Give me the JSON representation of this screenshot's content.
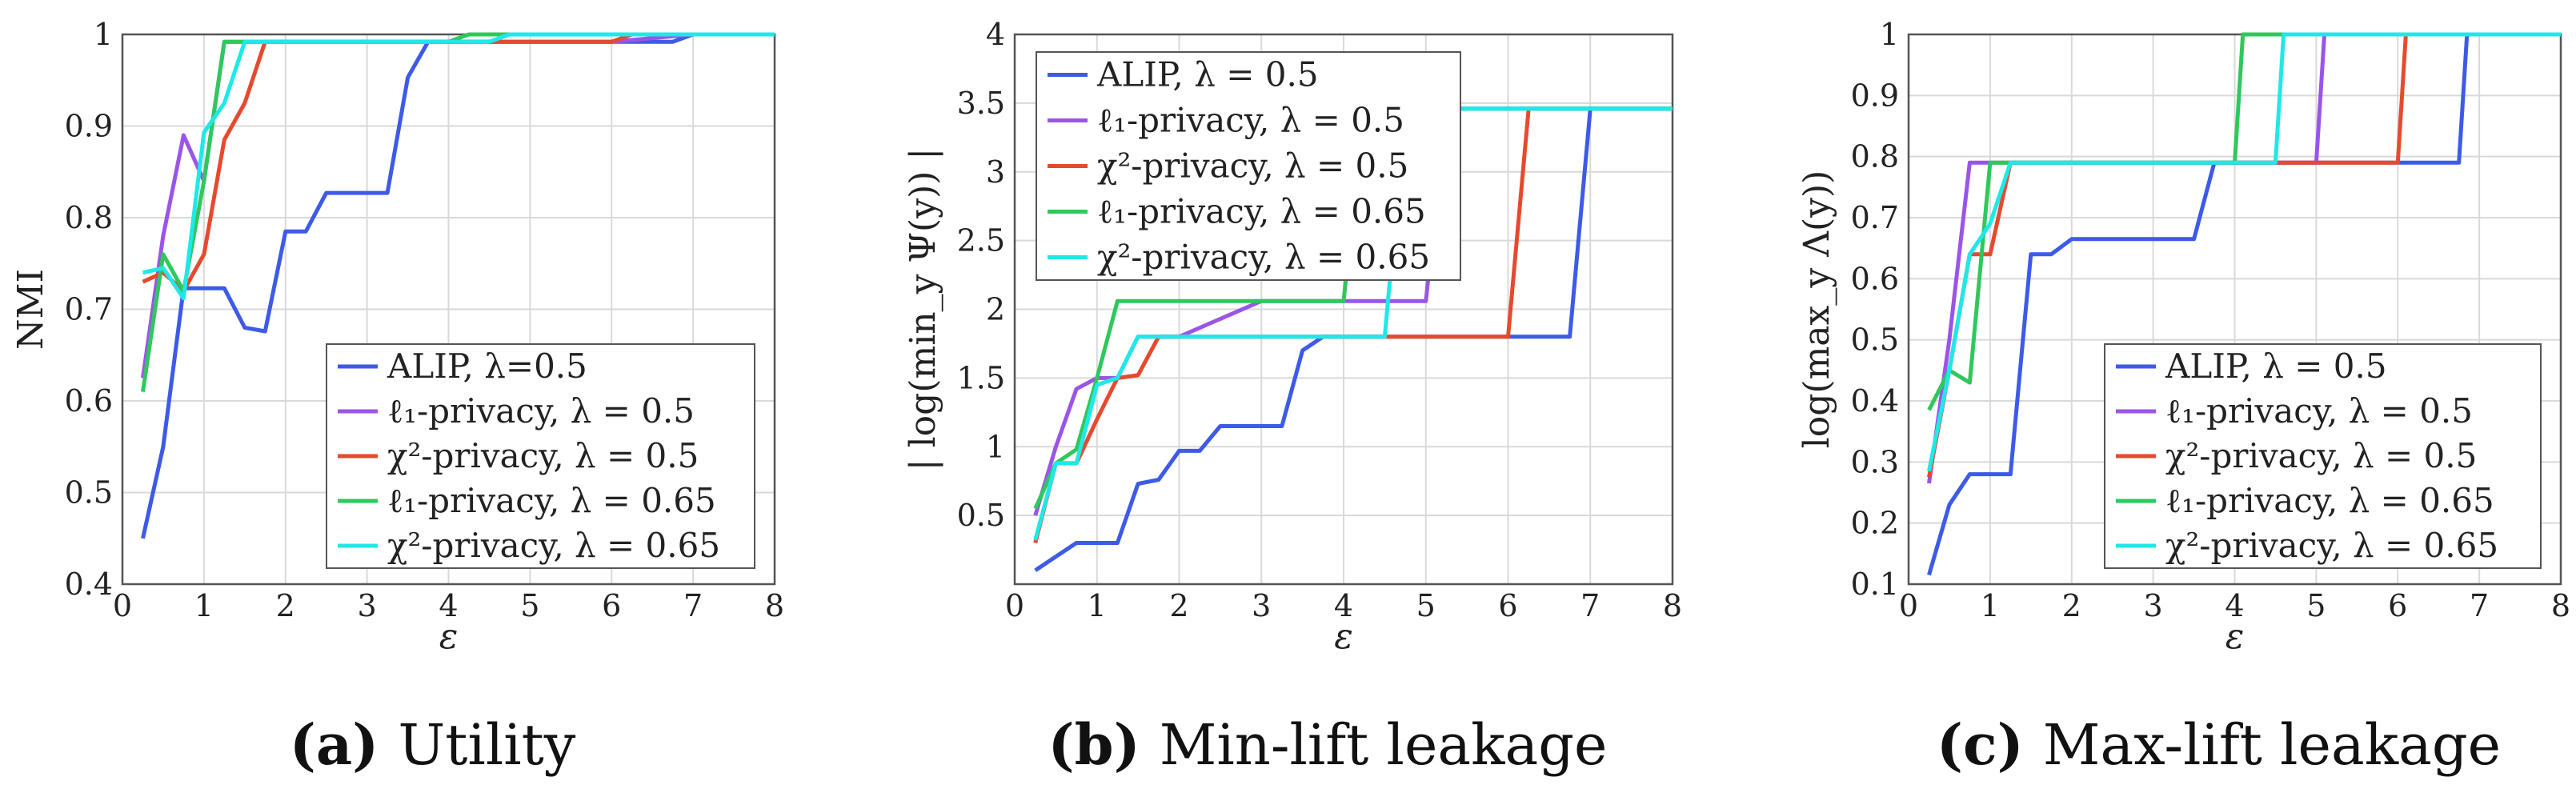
{
  "colors": {
    "alip": "#3d5ae8",
    "l1_05": "#9a55e8",
    "chi_05": "#e64a2e",
    "l1_065": "#2fc85c",
    "chi_065": "#1fe8e8"
  },
  "chart_data": [
    {
      "type": "line",
      "ylabel": "NMI",
      "xlabel": "ε",
      "caption_tag": "(a)",
      "caption_text": "Utility",
      "xlim": [
        0,
        8
      ],
      "ylim": [
        0.4,
        1
      ],
      "xticks": [
        "0",
        "1",
        "2",
        "3",
        "4",
        "5",
        "6",
        "7",
        "8"
      ],
      "yticks": [
        "0.4",
        "0.5",
        "0.6",
        "0.7",
        "0.8",
        "0.9",
        "1"
      ],
      "legend_position": "bottom-right",
      "series": [
        {
          "name": "ALIP, λ=0.5",
          "color_key": "alip",
          "x": [
            0.25,
            0.5,
            0.75,
            1.0,
            1.25,
            1.5,
            1.75,
            2.0,
            2.25,
            2.5,
            2.75,
            3.0,
            3.25,
            3.5,
            3.75,
            4.0,
            4.5,
            5.0,
            5.5,
            6.0,
            6.5,
            6.75,
            7.0,
            8.0
          ],
          "y": [
            0.45,
            0.55,
            0.723,
            0.723,
            0.723,
            0.68,
            0.676,
            0.785,
            0.785,
            0.827,
            0.827,
            0.827,
            0.827,
            0.953,
            0.992,
            0.992,
            0.992,
            0.992,
            0.992,
            0.992,
            0.992,
            0.992,
            1.0,
            1.0
          ]
        },
        {
          "name": "ℓ₁-privacy, λ = 0.5",
          "color_key": "l1_05",
          "x": [
            0.25,
            0.5,
            0.75,
            1.0,
            1.25,
            1.5,
            1.75,
            2.0,
            3.0,
            4.0,
            5.0,
            6.0,
            7.0,
            8.0
          ],
          "y": [
            0.625,
            0.78,
            0.89,
            0.84,
            0.992,
            0.992,
            0.992,
            0.992,
            0.992,
            0.992,
            0.992,
            0.992,
            1.0,
            1.0
          ]
        },
        {
          "name": "χ²-privacy, λ = 0.5",
          "color_key": "chi_05",
          "x": [
            0.25,
            0.5,
            0.75,
            1.0,
            1.25,
            1.5,
            1.75,
            2.0,
            3.0,
            4.0,
            5.0,
            6.0,
            6.25,
            7.0,
            8.0
          ],
          "y": [
            0.73,
            0.74,
            0.72,
            0.76,
            0.885,
            0.925,
            0.992,
            0.992,
            0.992,
            0.992,
            0.992,
            0.992,
            1.0,
            1.0,
            1.0
          ]
        },
        {
          "name": "ℓ₁-privacy, λ = 0.65",
          "color_key": "l1_065",
          "x": [
            0.25,
            0.5,
            0.75,
            1.0,
            1.25,
            1.5,
            1.75,
            2.0,
            3.0,
            4.0,
            4.25,
            5.0,
            6.0,
            7.0,
            8.0
          ],
          "y": [
            0.61,
            0.76,
            0.72,
            0.84,
            0.992,
            0.992,
            0.992,
            0.992,
            0.992,
            0.992,
            1.0,
            1.0,
            1.0,
            1.0,
            1.0
          ]
        },
        {
          "name": "χ²-privacy, λ = 0.65",
          "color_key": "chi_065",
          "x": [
            0.25,
            0.5,
            0.75,
            1.0,
            1.25,
            1.5,
            1.75,
            2.0,
            3.0,
            4.0,
            4.5,
            4.75,
            5.0,
            6.0,
            7.0,
            8.0
          ],
          "y": [
            0.74,
            0.745,
            0.712,
            0.893,
            0.925,
            0.992,
            0.992,
            0.992,
            0.992,
            0.992,
            0.992,
            1.0,
            1.0,
            1.0,
            1.0,
            1.0
          ]
        }
      ],
      "legend": [
        "ALIP, λ=0.5",
        "ℓ₁-privacy, λ = 0.5",
        "χ²-privacy, λ = 0.5",
        "ℓ₁-privacy, λ = 0.65",
        "χ²-privacy, λ = 0.65"
      ]
    },
    {
      "type": "line",
      "ylabel": "| log(min_y Ψ(y)) |",
      "xlabel": "ε",
      "caption_tag": "(b)",
      "caption_text": "Min-lift leakage",
      "xlim": [
        0,
        8
      ],
      "ylim": [
        0,
        4
      ],
      "xticks": [
        "0",
        "1",
        "2",
        "3",
        "4",
        "5",
        "6",
        "7",
        "8"
      ],
      "yticks": [
        "0.5",
        "1",
        "1.5",
        "2",
        "2.5",
        "3",
        "3.5",
        "4"
      ],
      "ytick_values": [
        0.5,
        1,
        1.5,
        2,
        2.5,
        3,
        3.5,
        4
      ],
      "legend_position": "top-left",
      "series": [
        {
          "name": "ALIP, λ = 0.5",
          "color_key": "alip",
          "x": [
            0.25,
            0.5,
            0.75,
            1.0,
            1.25,
            1.5,
            1.75,
            2.0,
            2.25,
            2.5,
            2.75,
            3.0,
            3.25,
            3.5,
            3.75,
            4.0,
            5.0,
            6.0,
            6.75,
            7.0,
            8.0
          ],
          "y": [
            0.1,
            0.2,
            0.3,
            0.3,
            0.3,
            0.73,
            0.76,
            0.97,
            0.97,
            1.15,
            1.15,
            1.15,
            1.15,
            1.7,
            1.8,
            1.8,
            1.8,
            1.8,
            1.8,
            3.46,
            3.46
          ]
        },
        {
          "name": "ℓ₁-privacy, λ = 0.5",
          "color_key": "l1_05",
          "x": [
            0.25,
            0.5,
            0.75,
            1.0,
            1.25,
            1.5,
            1.75,
            2.0,
            3.0,
            4.0,
            4.75,
            5.0,
            5.25,
            6.0,
            7.0,
            8.0
          ],
          "y": [
            0.5,
            1.0,
            1.42,
            1.5,
            1.5,
            1.8,
            1.8,
            1.8,
            2.06,
            2.06,
            2.06,
            2.06,
            3.46,
            3.46,
            3.46,
            3.46
          ]
        },
        {
          "name": "χ²-privacy, λ = 0.5",
          "color_key": "chi_05",
          "x": [
            0.25,
            0.5,
            0.75,
            1.0,
            1.25,
            1.5,
            1.75,
            2.0,
            3.0,
            4.0,
            5.0,
            6.0,
            6.25,
            7.0,
            8.0
          ],
          "y": [
            0.3,
            0.88,
            0.88,
            1.2,
            1.5,
            1.52,
            1.8,
            1.8,
            1.8,
            1.8,
            1.8,
            1.8,
            3.46,
            3.46,
            3.46
          ]
        },
        {
          "name": "ℓ₁-privacy, λ = 0.65",
          "color_key": "l1_065",
          "x": [
            0.25,
            0.5,
            0.75,
            1.0,
            1.25,
            2.0,
            3.0,
            4.0,
            4.25,
            5.0,
            6.0,
            7.0,
            8.0
          ],
          "y": [
            0.55,
            0.88,
            0.98,
            1.5,
            2.06,
            2.06,
            2.06,
            2.06,
            3.46,
            3.46,
            3.46,
            3.46,
            3.46
          ]
        },
        {
          "name": "χ²-privacy, λ = 0.65",
          "color_key": "chi_065",
          "x": [
            0.25,
            0.5,
            0.75,
            1.0,
            1.25,
            1.5,
            2.0,
            3.0,
            4.0,
            4.5,
            4.75,
            5.0,
            6.0,
            7.0,
            8.0
          ],
          "y": [
            0.32,
            0.88,
            0.88,
            1.45,
            1.5,
            1.8,
            1.8,
            1.8,
            1.8,
            1.8,
            3.46,
            3.46,
            3.46,
            3.46,
            3.46
          ]
        }
      ],
      "legend": [
        "ALIP, λ = 0.5",
        "ℓ₁-privacy, λ = 0.5",
        "χ²-privacy, λ = 0.5",
        "ℓ₁-privacy, λ = 0.65",
        "χ²-privacy, λ = 0.65"
      ]
    },
    {
      "type": "line",
      "ylabel": "log(max_y Λ(y))",
      "xlabel": "ε",
      "caption_tag": "(c)",
      "caption_text": "Max-lift leakage",
      "xlim": [
        0,
        8
      ],
      "ylim": [
        0.1,
        1
      ],
      "xticks": [
        "0",
        "1",
        "2",
        "3",
        "4",
        "5",
        "6",
        "7",
        "8"
      ],
      "yticks": [
        "0.1",
        "0.2",
        "0.3",
        "0.4",
        "0.5",
        "0.6",
        "0.7",
        "0.8",
        "0.9",
        "1"
      ],
      "legend_position": "bottom-right",
      "series": [
        {
          "name": "ALIP, λ = 0.5",
          "color_key": "alip",
          "x": [
            0.25,
            0.5,
            0.75,
            1.0,
            1.25,
            1.5,
            1.75,
            2.0,
            2.25,
            2.5,
            2.75,
            3.0,
            3.25,
            3.5,
            3.75,
            4.0,
            5.0,
            6.0,
            6.75,
            6.85,
            7.0,
            8.0
          ],
          "y": [
            0.115,
            0.23,
            0.28,
            0.28,
            0.28,
            0.64,
            0.64,
            0.665,
            0.665,
            0.665,
            0.665,
            0.665,
            0.665,
            0.665,
            0.79,
            0.79,
            0.79,
            0.79,
            0.79,
            1.0,
            1.0,
            1.0
          ]
        },
        {
          "name": "ℓ₁-privacy, λ = 0.5",
          "color_key": "l1_05",
          "x": [
            0.25,
            0.5,
            0.75,
            1.0,
            2.0,
            3.0,
            4.0,
            5.0,
            5.1,
            6.0,
            7.0,
            8.0
          ],
          "y": [
            0.265,
            0.5,
            0.79,
            0.79,
            0.79,
            0.79,
            0.79,
            0.79,
            1.0,
            1.0,
            1.0,
            1.0
          ]
        },
        {
          "name": "χ²-privacy, λ = 0.5",
          "color_key": "chi_05",
          "x": [
            0.25,
            0.5,
            0.75,
            1.0,
            1.25,
            2.0,
            3.0,
            4.0,
            5.0,
            6.0,
            6.1,
            7.0,
            8.0
          ],
          "y": [
            0.275,
            0.45,
            0.64,
            0.64,
            0.79,
            0.79,
            0.79,
            0.79,
            0.79,
            0.79,
            1.0,
            1.0,
            1.0
          ]
        },
        {
          "name": "ℓ₁-privacy, λ = 0.65",
          "color_key": "l1_065",
          "x": [
            0.25,
            0.5,
            0.75,
            1.0,
            2.0,
            3.0,
            4.0,
            4.1,
            5.0,
            6.0,
            7.0,
            8.0
          ],
          "y": [
            0.385,
            0.45,
            0.43,
            0.79,
            0.79,
            0.79,
            0.79,
            1.0,
            1.0,
            1.0,
            1.0,
            1.0
          ]
        },
        {
          "name": "χ²-privacy, λ = 0.65",
          "color_key": "chi_065",
          "x": [
            0.25,
            0.5,
            0.75,
            1.0,
            1.25,
            2.0,
            3.0,
            4.0,
            4.5,
            4.6,
            5.0,
            6.0,
            7.0,
            8.0
          ],
          "y": [
            0.285,
            0.45,
            0.64,
            0.69,
            0.79,
            0.79,
            0.79,
            0.79,
            0.79,
            1.0,
            1.0,
            1.0,
            1.0,
            1.0
          ]
        }
      ],
      "legend": [
        "ALIP, λ = 0.5",
        "ℓ₁-privacy, λ = 0.5",
        "χ²-privacy, λ = 0.5",
        "ℓ₁-privacy, λ = 0.65",
        "χ²-privacy, λ = 0.65"
      ]
    }
  ]
}
